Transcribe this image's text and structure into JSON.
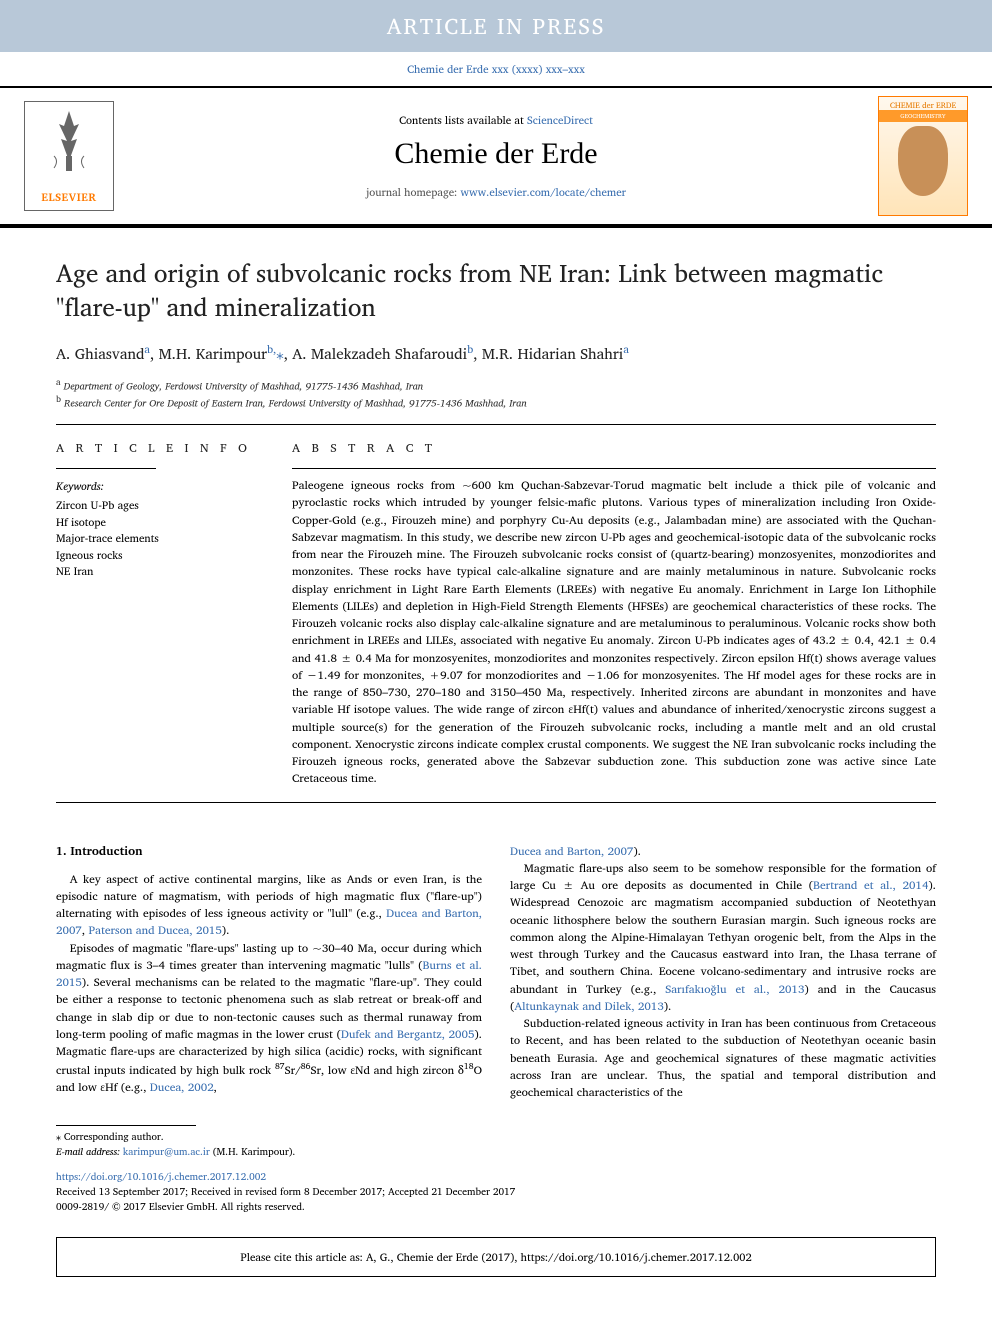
{
  "banner": {
    "text": "ARTICLE IN PRESS",
    "bg": "#b8c8d8",
    "fg": "#ffffff"
  },
  "journal_ref": "Chemie der Erde xxx (xxxx) xxx–xxx",
  "masthead": {
    "contents_pre": "Contents lists available at ",
    "contents_link": "ScienceDirect",
    "journal": "Chemie der Erde",
    "homepage_pre": "journal homepage: ",
    "homepage_link": "www.elsevier.com/locate/chemer",
    "publisher": "ELSEVIER",
    "cover_title": "CHEMIE der ERDE",
    "cover_sub": "GEOCHEMISTRY"
  },
  "article": {
    "title": "Age and origin of subvolcanic rocks from NE Iran: Link between magmatic \"flare-up\" and mineralization",
    "authors_html": "A. Ghiasvand<sup>a</sup>, M.H. Karimpour<sup>b,</sup><span class='corr'>⁎</span>, A. Malekzadeh Shafaroudi<sup>b</sup>, M.R. Hidarian Shahri<sup>a</sup>",
    "affiliations": [
      {
        "sup": "a",
        "text": "Department of Geology, Ferdowsi University of Mashhad, 91775-1436 Mashhad, Iran"
      },
      {
        "sup": "b",
        "text": "Research Center for Ore Deposit of Eastern Iran, Ferdowsi University of Mashhad, 91775-1436 Mashhad, Iran"
      }
    ]
  },
  "info": {
    "heading": "A R T I C L E  I N F O",
    "kw_label": "Keywords:",
    "keywords": [
      "Zircon U-Pb ages",
      "Hf isotope",
      "Major-trace elements",
      "Igneous rocks",
      "NE Iran"
    ]
  },
  "abstract": {
    "heading": "A B S T R A C T",
    "text": "Paleogene igneous rocks from ~600 km Quchan-Sabzevar-Torud magmatic belt include a thick pile of volcanic and pyroclastic rocks which intruded by younger felsic-mafic plutons. Various types of mineralization including Iron Oxide-Copper-Gold (e.g., Firouzeh mine) and porphyry Cu-Au deposits (e.g., Jalambadan mine) are associated with the Quchan-Sabzevar magmatism. In this study, we describe new zircon U-Pb ages and geochemical-isotopic data of the subvolcanic rocks from near the Firouzeh mine. The Firouzeh subvolcanic rocks consist of (quartz-bearing) monzosyenites, monzodiorites and monzonites. These rocks have typical calc-alkaline signature and are mainly metaluminous in nature. Subvolcanic rocks display enrichment in Light Rare Earth Elements (LREEs) with negative Eu anomaly. Enrichment in Large Ion Lithophile Elements (LILEs) and depletion in High-Field Strength Elements (HFSEs) are geochemical characteristics of these rocks. The Firouzeh volcanic rocks also display calc-alkaline signature and are metaluminous to peraluminous. Volcanic rocks show both enrichment in LREEs and LILEs, associated with negative Eu anomaly. Zircon U-Pb indicates ages of 43.2 ± 0.4, 42.1 ± 0.4 and 41.8 ± 0.4 Ma for monzosyenites, monzodiorites and monzonites respectively. Zircon epsilon Hf(t) shows average values of −1.49 for monzonites, +9.07 for monzodiorites and −1.06 for monzosyenites. The Hf model ages for these rocks are in the range of 850–730, 270–180 and 3150–450 Ma, respectively. Inherited zircons are abundant in monzonites and have variable Hf isotope values. The wide range of zircon εHf(t) values and abundance of inherited/xenocrystic zircons suggest a multiple source(s) for the generation of the Firouzeh subvolcanic rocks, including a mantle melt and an old crustal component. Xenocrystic zircons indicate complex crustal components. We suggest the NE Iran subvolcanic rocks including the Firouzeh igneous rocks, generated above the Sabzevar subduction zone. This subduction zone was active since Late Cretaceous time."
  },
  "body": {
    "heading": "1. Introduction",
    "p1_html": "A key aspect of active continental margins, like as Ands or even Iran, is the episodic nature of magmatism, with periods of high magmatic flux (\"flare-up\") alternating with episodes of less igneous activity or \"lull\" (e.g., <a>Ducea and Barton, 2007</a>, <a>Paterson and Ducea, 2015</a>).",
    "p2_html": "Episodes of magmatic \"flare-ups\" lasting up to ~30–40 Ma, occur during which magmatic flux is 3–4 times greater than intervening magmatic \"lulls\" (<a>Burns et al. 2015</a>). Several mechanisms can be related to the magmatic \"flare-up\". They could be either a response to tectonic phenomena such as slab retreat or break-off and change in slab dip or due to non-tectonic causes such as thermal runaway from long-term pooling of mafic magmas in the lower crust (<a>Dufek and Bergantz, 2005</a>). Magmatic flare-ups are characterized by high silica (acidic) rocks, with significant crustal inputs indicated by high bulk rock <sup>87</sup>Sr/<sup>86</sup>Sr, low εNd and high zircon δ<sup>18</sup>O and low εHf (e.g., <a>Ducea, 2002</a>,",
    "p3_html": "<a>Ducea and Barton, 2007</a>).",
    "p4_html": "Magmatic flare-ups also seem to be somehow responsible for the formation of large Cu ± Au ore deposits as documented in Chile (<a>Bertrand et al., 2014</a>). Widespread Cenozoic arc magmatism accompanied subduction of Neotethyan oceanic lithosphere below the southern Eurasian margin. Such igneous rocks are common along the Alpine-Himalayan Tethyan orogenic belt, from the Alps in the west through Turkey and the Caucasus eastward into Iran, the Lhasa terrane of Tibet, and southern China. Eocene volcano-sedimentary and intrusive rocks are abundant in Turkey (e.g., <a>Sarıfakıoğlu et al., 2013</a>) and in the Caucasus (<a>Altunkaynak and Dilek, 2013</a>).",
    "p5_html": "Subduction-related igneous activity in Iran has been continuous from Cretaceous to Recent, and has been related to the subduction of Neotethyan oceanic basin beneath Eurasia. Age and geochemical signatures of these magmatic activities across Iran are unclear. Thus, the spatial and temporal distribution and geochemical characteristics of the"
  },
  "footer": {
    "corr_label": "⁎ Corresponding author.",
    "email_label": "E-mail address: ",
    "email": "karimpur@um.ac.ir",
    "email_suffix": " (M.H. Karimpour).",
    "doi": "https://doi.org/10.1016/j.chemer.2017.12.002",
    "received": "Received 13 September 2017; Received in revised form 8 December 2017; Accepted 21 December 2017",
    "copyright": "0009-2819/ © 2017 Elsevier GmbH. All rights reserved."
  },
  "cite": "Please cite this article as: A, G., Chemie der Erde (2017), https://doi.org/10.1016/j.chemer.2017.12.002",
  "colors": {
    "link": "#3a6fb0",
    "orange": "#ff7a00",
    "banner_bg": "#b8c8d8"
  }
}
